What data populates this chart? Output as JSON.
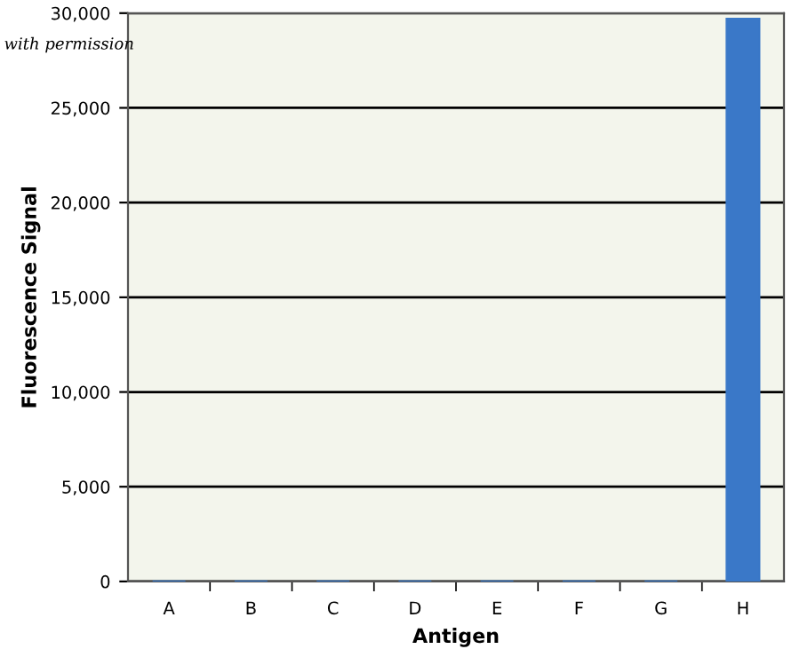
{
  "chart_data": {
    "type": "bar",
    "xlabel": "Antigen",
    "ylabel": "Fluorescence Signal",
    "annotations": [
      "with permission"
    ],
    "categories": [
      "A",
      "B",
      "C",
      "D",
      "E",
      "F",
      "G",
      "H"
    ],
    "values": [
      0,
      0,
      0,
      0,
      0,
      0,
      0,
      29700
    ],
    "color": "#3a78c8",
    "ylim": [
      0,
      30000
    ],
    "yticks": [
      {
        "value": 0,
        "label": "0"
      },
      {
        "value": 5000,
        "label": "5,000"
      },
      {
        "value": 10000,
        "label": "10,000"
      },
      {
        "value": 15000,
        "label": "15,000"
      },
      {
        "value": 20000,
        "label": "20,000"
      },
      {
        "value": 25000,
        "label": "25,000"
      },
      {
        "value": 30000,
        "label": "30,000"
      }
    ],
    "grid": "y",
    "legend": false
  }
}
